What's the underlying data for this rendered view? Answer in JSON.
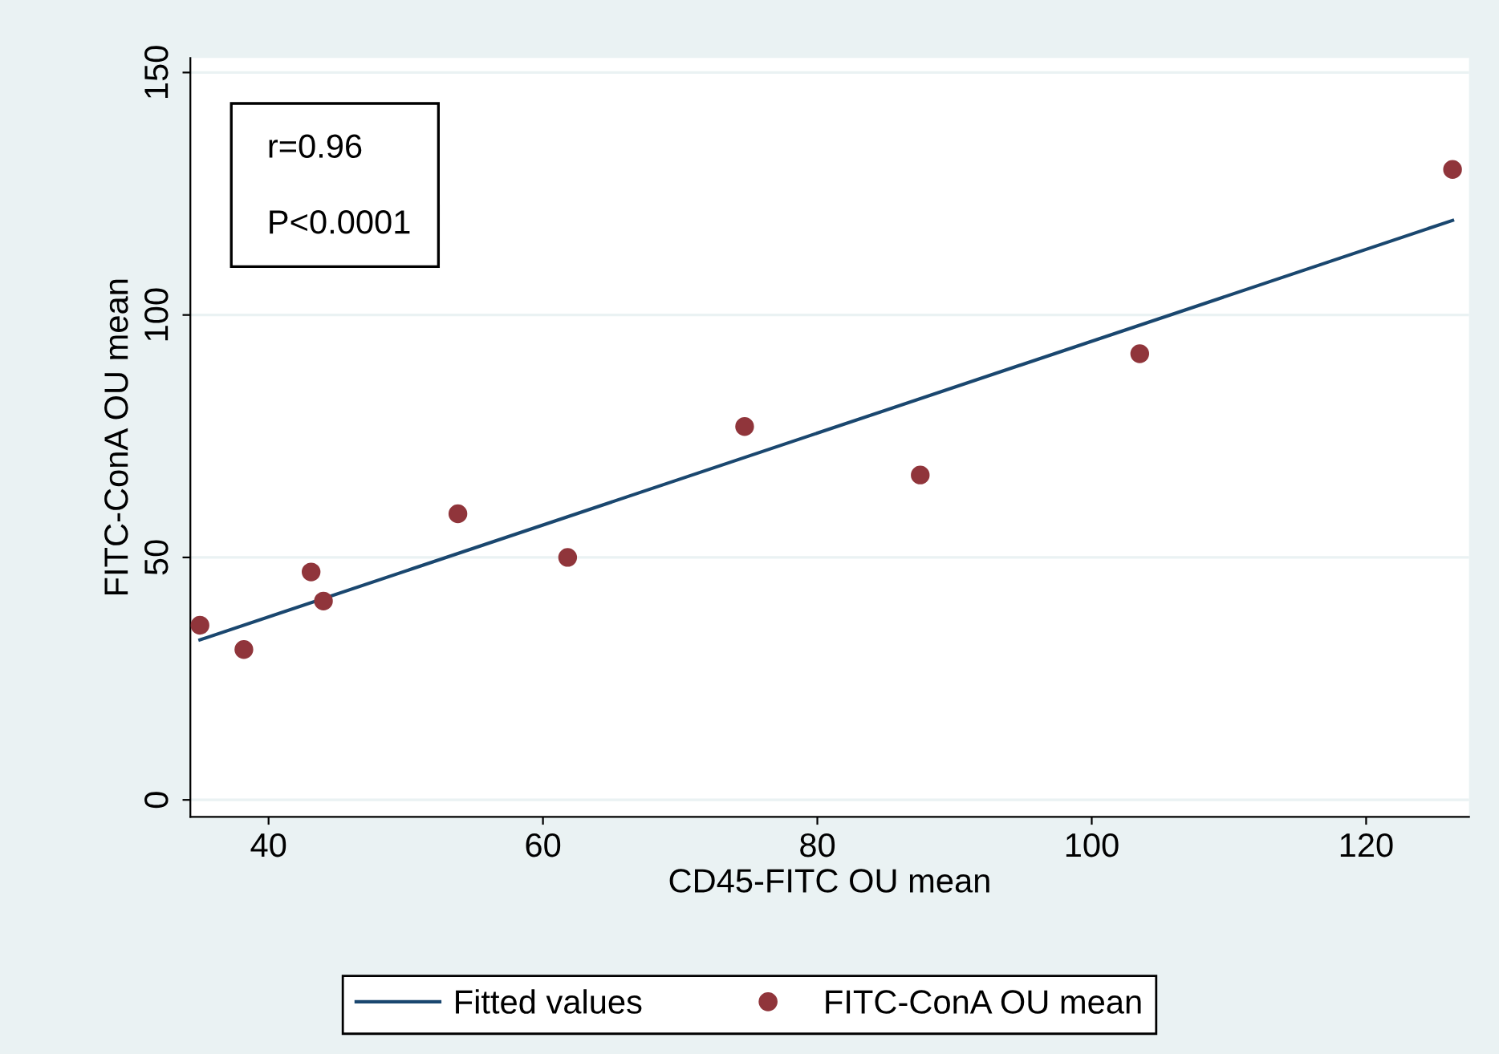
{
  "chart_data": {
    "type": "scatter",
    "xlabel": "CD45-FITC OU mean",
    "ylabel": "FITC-ConA OU mean",
    "series": [
      {
        "name": "Fitted values",
        "type": "line",
        "color": "#1a476f",
        "x": [
          35,
          126.3
        ],
        "values": [
          33,
          119.5
        ]
      },
      {
        "name": "FITC-ConA OU mean",
        "marker": "circle",
        "color": "#90353b",
        "x": [
          35,
          38.2,
          43.1,
          44,
          53.8,
          61.8,
          74.7,
          87.5,
          103.5,
          126.3
        ],
        "values": [
          36,
          31,
          47,
          41,
          59,
          50,
          77,
          67,
          92,
          130
        ]
      }
    ],
    "annotations": [
      "r=0.96",
      "P<0.0001"
    ],
    "xlim": [
      34.3,
      127.5
    ],
    "xticks": [
      40,
      60,
      80,
      100,
      120
    ],
    "ylim": [
      -3.5,
      153
    ],
    "yticks": [
      0,
      50,
      100,
      150
    ],
    "grid": "y",
    "legend": "bottom",
    "line_style": "solid"
  }
}
